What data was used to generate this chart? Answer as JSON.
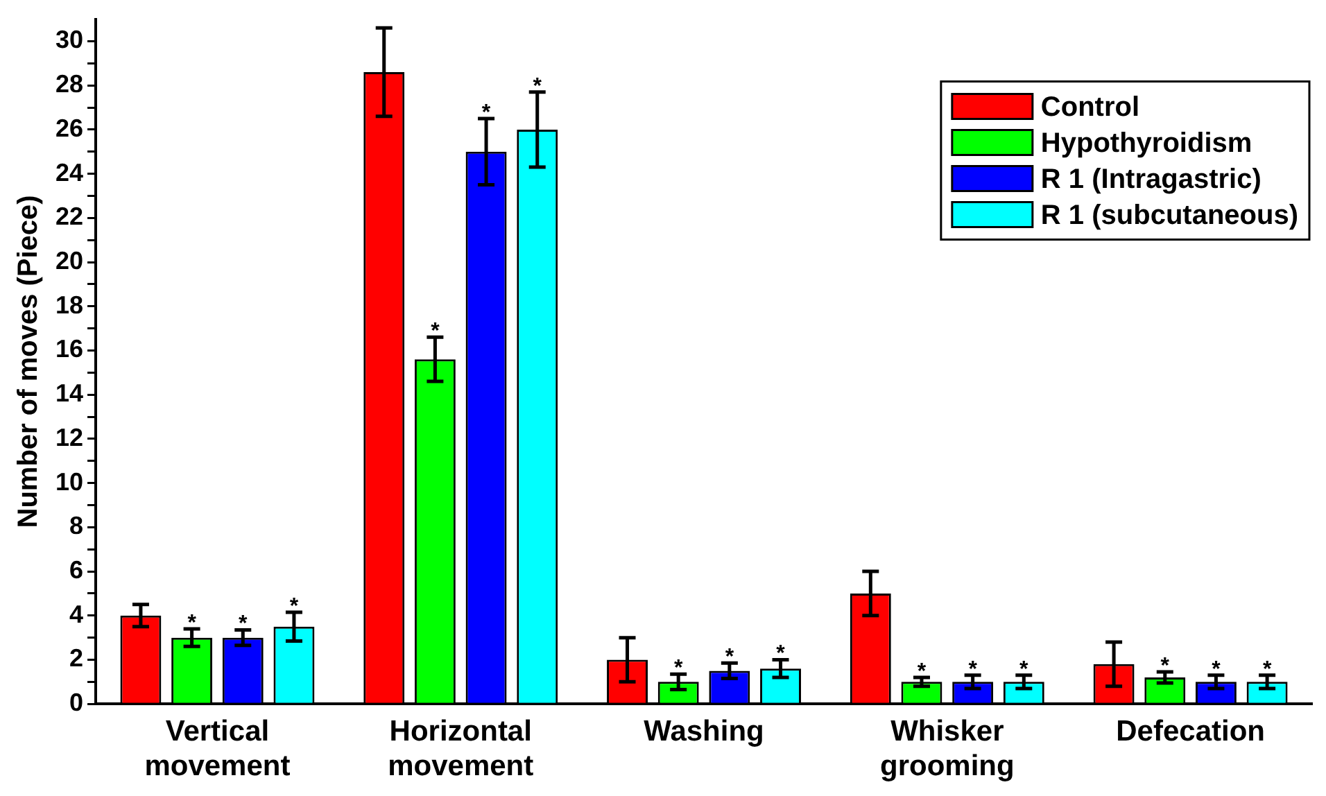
{
  "chart_data": {
    "type": "bar",
    "ylabel": "Number of moves (Piece)",
    "categories": [
      "Vertical movement",
      "Horizontal movement",
      "Washing",
      "Whisker grooming",
      "Defecation"
    ],
    "series": [
      {
        "name": "Control",
        "color": "#ff0000",
        "values": [
          4,
          28.6,
          2,
          5,
          1.8
        ],
        "errors": [
          0.5,
          2,
          1,
          1,
          1
        ],
        "value_labels": [
          null,
          null,
          null,
          null,
          null
        ]
      },
      {
        "name": "Hypothyroidism",
        "color": "#00ff00",
        "values": [
          3,
          15.6,
          1,
          1,
          1.2
        ],
        "errors": [
          0.4,
          1,
          0.35,
          0.2,
          0.25
        ],
        "value_labels": [
          "*",
          "*",
          "*",
          "*",
          "*"
        ]
      },
      {
        "name": "R 1 (Intragastric)",
        "color": "#0000ff",
        "values": [
          3,
          25,
          1.5,
          1,
          1
        ],
        "errors": [
          0.35,
          1.5,
          0.35,
          0.3,
          0.3
        ],
        "value_labels": [
          "*",
          "*",
          "*",
          "*",
          "*"
        ]
      },
      {
        "name": "R 1 (subcutaneous)",
        "color": "#00ffff",
        "values": [
          3.5,
          26,
          1.6,
          1,
          1
        ],
        "errors": [
          0.65,
          1.7,
          0.4,
          0.3,
          0.3
        ],
        "value_labels": [
          "*",
          "*",
          "*",
          "*",
          "*"
        ]
      }
    ],
    "ylim": [
      0,
      31
    ],
    "yticks": [
      0,
      {
        "value": 1,
        "label": null
      },
      2,
      {
        "value": 3,
        "label": null
      },
      4,
      {
        "value": 5,
        "label": null
      },
      6,
      {
        "value": 7,
        "label": null
      },
      8,
      {
        "value": 9,
        "label": null
      },
      10,
      {
        "value": 11,
        "label": null
      },
      12,
      {
        "value": 13,
        "label": null
      },
      14,
      {
        "value": 15,
        "label": null
      },
      16,
      {
        "value": 17,
        "label": null
      },
      18,
      {
        "value": 19,
        "label": null
      },
      20,
      {
        "value": 21,
        "label": null
      },
      22,
      {
        "value": 23,
        "label": null
      },
      24,
      {
        "value": 25,
        "label": null
      },
      26,
      {
        "value": 27,
        "label": null
      },
      28,
      {
        "value": 29,
        "label": null
      },
      30
    ],
    "grid": false,
    "legend": "top right"
  }
}
